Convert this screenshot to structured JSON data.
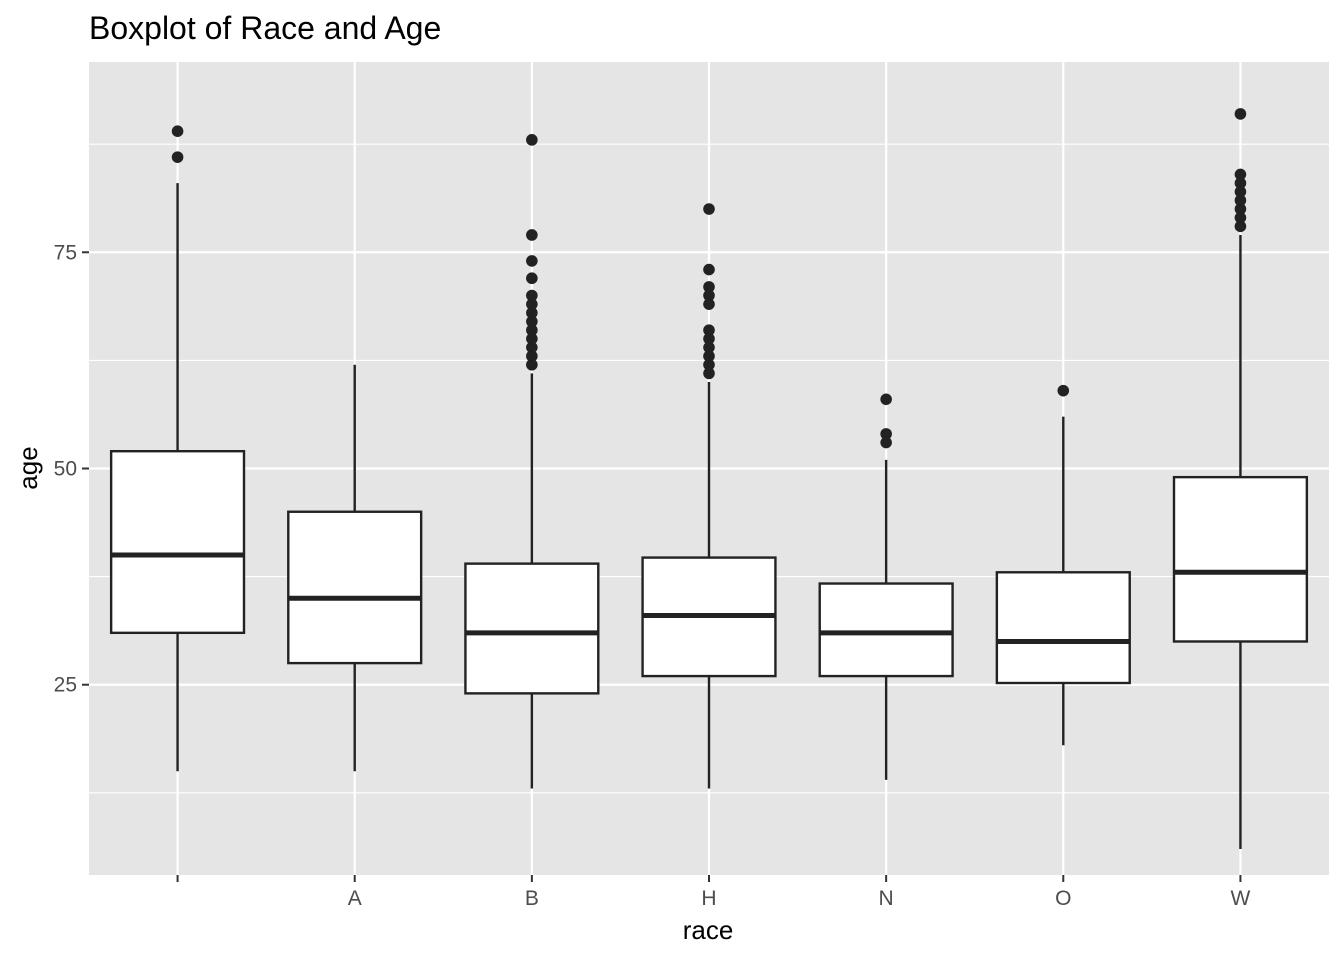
{
  "chart_data": {
    "type": "boxplot",
    "title": "Boxplot of Race and Age",
    "xlabel": "race",
    "ylabel": "age",
    "ylim": [
      3,
      97
    ],
    "y_major_ticks": [
      25,
      50,
      75
    ],
    "y_minor_ticks": [
      12.5,
      37.5,
      62.5,
      87.5
    ],
    "grid": true,
    "legend": "none",
    "categories": [
      "",
      "A",
      "B",
      "H",
      "N",
      "O",
      "W"
    ],
    "boxes": [
      {
        "category": "",
        "whisker_low": 15,
        "q1": 31,
        "median": 40,
        "q3": 52,
        "whisker_high": 83,
        "outliers": [
          86,
          89
        ]
      },
      {
        "category": "A",
        "whisker_low": 15,
        "q1": 27.5,
        "median": 35,
        "q3": 45,
        "whisker_high": 62,
        "outliers": []
      },
      {
        "category": "B",
        "whisker_low": 13,
        "q1": 24,
        "median": 31,
        "q3": 39,
        "whisker_high": 61,
        "outliers": [
          62,
          63,
          64,
          65,
          66,
          67,
          68,
          69,
          70,
          72,
          74,
          77,
          88
        ]
      },
      {
        "category": "H",
        "whisker_low": 13,
        "q1": 26,
        "median": 33,
        "q3": 39.7,
        "whisker_high": 60,
        "outliers": [
          61,
          62,
          63,
          64,
          65,
          66,
          69,
          70,
          71,
          73,
          80
        ]
      },
      {
        "category": "N",
        "whisker_low": 14,
        "q1": 26,
        "median": 31,
        "q3": 36.7,
        "whisker_high": 51,
        "outliers": [
          53,
          54,
          58
        ]
      },
      {
        "category": "O",
        "whisker_low": 18,
        "q1": 25.2,
        "median": 30,
        "q3": 38,
        "whisker_high": 56,
        "outliers": [
          59
        ]
      },
      {
        "category": "W",
        "whisker_low": 6,
        "q1": 30,
        "median": 38,
        "q3": 49,
        "whisker_high": 77,
        "outliers": [
          78,
          79,
          80,
          81,
          82,
          83,
          84,
          91
        ]
      }
    ],
    "colors": {
      "panel_background": "#e5e5e5",
      "grid": "#ffffff",
      "box_fill": "#ffffff",
      "box_line": "#222222",
      "tick": "#333333"
    }
  }
}
